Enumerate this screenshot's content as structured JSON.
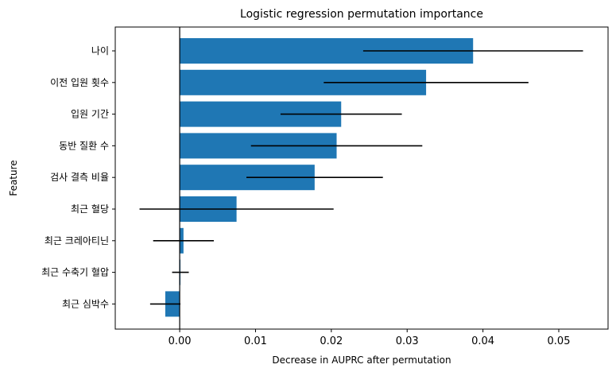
{
  "chart_data": {
    "type": "bar",
    "orientation": "horizontal",
    "title": "Logistic regression permutation importance",
    "xlabel": "Decrease in AUPRC after permutation",
    "ylabel": "Feature",
    "xlim": [
      -0.0085,
      0.0565
    ],
    "xticks": [
      0.0,
      0.01,
      0.02,
      0.03,
      0.04,
      0.05
    ],
    "xtick_labels": [
      "0.00",
      "0.01",
      "0.02",
      "0.03",
      "0.04",
      "0.05"
    ],
    "grid": false,
    "bar_color": "#1f77b4",
    "errorbar_color": "#000000",
    "categories": [
      "나이",
      "이전 입원 횟수",
      "입원 기간",
      "동반 질환 수",
      "검사 결측 비율",
      "최근 혈당",
      "최근 크레아티닌",
      "최근 수축기 혈압",
      "최근 심박수"
    ],
    "values": [
      0.0387,
      0.0325,
      0.0213,
      0.0207,
      0.0178,
      0.0075,
      0.0005,
      0.0001,
      -0.0019
    ],
    "errors": [
      0.0145,
      0.0135,
      0.008,
      0.0113,
      0.009,
      0.0128,
      0.004,
      0.0011,
      0.002
    ]
  }
}
